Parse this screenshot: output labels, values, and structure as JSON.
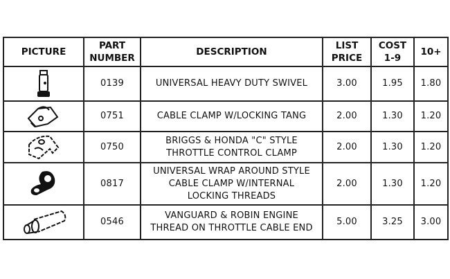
{
  "headers": {
    "picture": "PICTURE",
    "part_number_1": "PART",
    "part_number_2": "NUMBER",
    "description": "DESCRIPTION",
    "list_1": "LIST",
    "list_2": "PRICE",
    "cost_1": "COST",
    "cost_2": "1-9",
    "ten": "10+"
  },
  "rows": [
    {
      "icon": "swivel-icon",
      "part": "0139",
      "desc": [
        "UNIVERSAL HEAVY DUTY SWIVEL"
      ],
      "list": "3.00",
      "cost": "1.95",
      "ten": "1.80"
    },
    {
      "icon": "cable-clamp-tang-icon",
      "part": "0751",
      "desc": [
        "CABLE CLAMP W/LOCKING TANG"
      ],
      "list": "2.00",
      "cost": "1.30",
      "ten": "1.20"
    },
    {
      "icon": "throttle-clamp-icon",
      "part": "0750",
      "desc": [
        "BRIGGS & HONDA \"C\" STYLE",
        "THROTTLE CONTROL CLAMP"
      ],
      "list": "2.00",
      "cost": "1.30",
      "ten": "1.20"
    },
    {
      "icon": "wrap-clamp-icon",
      "part": "0817",
      "desc": [
        "UNIVERSAL WRAP AROUND STYLE",
        "CABLE CLAMP W/INTERNAL",
        "LOCKING THREADS"
      ],
      "list": "2.00",
      "cost": "1.30",
      "ten": "1.20"
    },
    {
      "icon": "cable-end-icon",
      "part": "0546",
      "desc": [
        "VANGUARD & ROBIN ENGINE",
        "THREAD ON THROTTLE CABLE END"
      ],
      "list": "5.00",
      "cost": "3.25",
      "ten": "3.00"
    }
  ]
}
